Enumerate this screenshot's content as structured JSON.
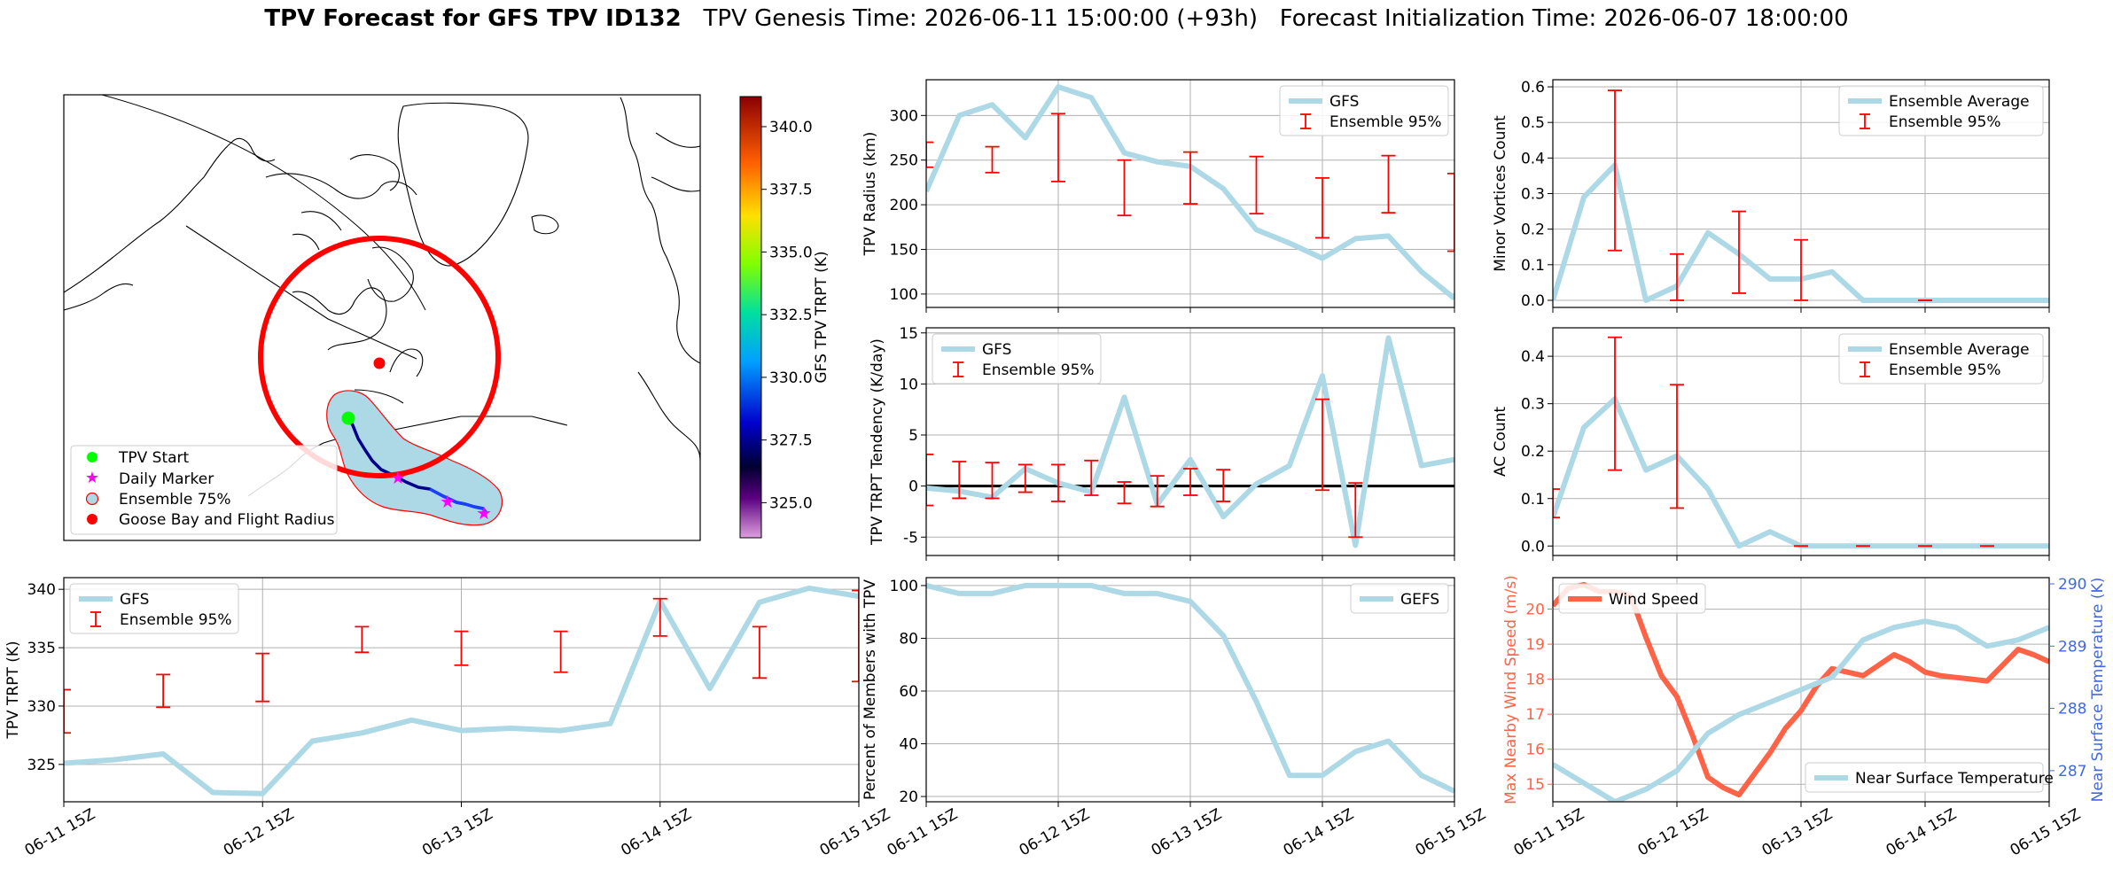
{
  "title": {
    "bold": "TPV Forecast for GFS TPV ID132",
    "genesis": "TPV Genesis Time: 2026-06-11 15:00:00 (+93h)",
    "init": "Forecast Initialization Time: 2026-06-07 18:00:00"
  },
  "x_ticks": [
    "06-11 15Z",
    "06-12 15Z",
    "06-13 15Z",
    "06-14 15Z",
    "06-15 15Z"
  ],
  "colors": {
    "gfs": "#add8e6",
    "error": "#ff0000",
    "wind": "#ff6347",
    "temp_axis": "#4169e1",
    "circle": "#ff0000",
    "start": "#00ff00",
    "daily": "#ff00ff",
    "goose": "#ff0000"
  },
  "map": {
    "colorbar_label": "GFS TPV TRPT (K)",
    "colorbar_ticks": [
      "325.0",
      "327.5",
      "330.0",
      "332.5",
      "335.0",
      "337.5",
      "340.0"
    ],
    "colorbar_range": [
      323.6,
      341.2
    ],
    "legend": [
      "TPV Start",
      "Daily Marker",
      "Ensemble 75%",
      "Goose Bay and Flight Radius"
    ]
  },
  "chart_data": [
    {
      "id": "radius",
      "type": "line",
      "ylabel": "TPV Radius (km)",
      "ylim": [
        85,
        340
      ],
      "yticks": [
        100,
        150,
        200,
        250,
        300
      ],
      "legend_location": "upper right",
      "grid": true,
      "series": [
        {
          "name": "GFS",
          "x": [
            0,
            0.25,
            0.5,
            0.75,
            1,
            1.25,
            1.5,
            1.75,
            2,
            2.25,
            2.5,
            2.75,
            3,
            3.25,
            3.5,
            3.75,
            4
          ],
          "y": [
            215,
            300,
            312,
            275,
            332,
            320,
            258,
            248,
            243,
            218,
            172,
            157,
            140,
            162,
            165,
            125,
            95
          ]
        }
      ],
      "errorbars": {
        "name": "Ensemble 95%",
        "x": [
          0,
          0.5,
          1,
          1.5,
          2,
          2.5,
          3,
          3.5,
          4
        ],
        "low": [
          242,
          236,
          226,
          188,
          201,
          190,
          163,
          191,
          148
        ],
        "high": [
          270,
          265,
          302,
          250,
          259,
          254,
          230,
          255,
          235
        ]
      }
    },
    {
      "id": "minor",
      "type": "line",
      "ylabel": "Minor Vortices Count",
      "ylim": [
        -0.02,
        0.62
      ],
      "yticks": [
        0.0,
        0.1,
        0.2,
        0.3,
        0.4,
        0.5,
        0.6
      ],
      "legend_location": "upper right",
      "grid": true,
      "series": [
        {
          "name": "Ensemble Average",
          "x": [
            0,
            0.25,
            0.5,
            0.75,
            1,
            1.25,
            1.5,
            1.75,
            2,
            2.25,
            2.5,
            2.75,
            3,
            3.25,
            3.5,
            3.75,
            4
          ],
          "y": [
            0,
            0.29,
            0.38,
            0,
            0.04,
            0.19,
            0.13,
            0.06,
            0.06,
            0.08,
            0,
            0,
            0,
            0,
            0,
            0,
            0
          ]
        }
      ],
      "errorbars": {
        "name": "Ensemble 95%",
        "x": [
          0.5,
          1,
          1.5,
          2,
          3
        ],
        "low": [
          0.14,
          0,
          0.02,
          0,
          0
        ],
        "high": [
          0.59,
          0.13,
          0.25,
          0.17,
          0
        ]
      }
    },
    {
      "id": "tendency",
      "type": "line",
      "ylabel": "TPV TRPT Tendency (K/day)",
      "ylim": [
        -6.8,
        15.5
      ],
      "yticks": [
        -5,
        0,
        5,
        10,
        15
      ],
      "legend_location": "upper left",
      "grid": true,
      "zero_line": true,
      "series": [
        {
          "name": "GFS",
          "x": [
            0,
            0.25,
            0.5,
            0.75,
            1,
            1.25,
            1.5,
            1.75,
            2,
            2.25,
            2.5,
            2.75,
            3,
            3.25,
            3.5,
            3.75,
            4
          ],
          "y": [
            -0.2,
            -0.5,
            -1.1,
            1.7,
            0.3,
            -0.6,
            8.7,
            -1.8,
            2.6,
            -3.0,
            0.2,
            2.0,
            10.8,
            -5.8,
            14.5,
            2.0,
            2.6
          ]
        }
      ],
      "errorbars": {
        "name": "Ensemble 95%",
        "x": [
          0,
          0.25,
          0.5,
          0.75,
          1,
          1.25,
          1.5,
          1.75,
          2,
          2.25,
          3,
          3.25
        ],
        "low": [
          -1.9,
          -1.2,
          -1.2,
          -0.6,
          -1.5,
          -0.9,
          -1.7,
          -2.0,
          -0.9,
          -1.5,
          -0.4,
          -5.0
        ],
        "high": [
          3.1,
          2.4,
          2.3,
          2.1,
          2.1,
          2.5,
          0.4,
          1.0,
          1.7,
          1.6,
          8.5,
          0.3
        ]
      }
    },
    {
      "id": "ac",
      "type": "line",
      "ylabel": "AC Count",
      "ylim": [
        -0.02,
        0.46
      ],
      "yticks": [
        0.0,
        0.1,
        0.2,
        0.3,
        0.4
      ],
      "legend_location": "upper right",
      "grid": true,
      "series": [
        {
          "name": "Ensemble Average",
          "x": [
            0,
            0.25,
            0.5,
            0.75,
            1,
            1.25,
            1.5,
            1.75,
            2,
            2.25,
            2.5,
            2.75,
            3,
            3.25,
            3.5,
            3.75,
            4
          ],
          "y": [
            0.06,
            0.25,
            0.31,
            0.16,
            0.19,
            0.12,
            0,
            0.03,
            0,
            0,
            0,
            0,
            0,
            0,
            0,
            0,
            0
          ]
        }
      ],
      "errorbars": {
        "name": "Ensemble 95%",
        "x": [
          0,
          0.5,
          1,
          2,
          2.5,
          3,
          3.5
        ],
        "low": [
          0.06,
          0.16,
          0.08,
          0,
          0,
          0,
          0
        ],
        "high": [
          0.12,
          0.44,
          0.34,
          0,
          0,
          0,
          0
        ]
      }
    },
    {
      "id": "trpt",
      "type": "line",
      "ylabel": "TPV TRPT (K)",
      "ylim": [
        321.8,
        341
      ],
      "yticks": [
        325,
        330,
        335,
        340
      ],
      "legend_location": "upper left",
      "grid": true,
      "series": [
        {
          "name": "GFS",
          "x": [
            0,
            0.25,
            0.5,
            0.75,
            1,
            1.25,
            1.5,
            1.75,
            2,
            2.25,
            2.5,
            2.75,
            3,
            3.25,
            3.5,
            3.75,
            4
          ],
          "y": [
            325.1,
            325.4,
            325.9,
            322.6,
            322.5,
            327.0,
            327.7,
            328.8,
            327.9,
            328.1,
            327.9,
            328.5,
            339.0,
            331.5,
            338.9,
            340.1,
            339.4
          ]
        }
      ],
      "errorbars": {
        "name": "Ensemble 95%",
        "x": [
          0,
          0.5,
          1,
          1.5,
          2,
          2.5,
          3,
          3.5,
          4
        ],
        "low": [
          327.7,
          329.9,
          330.4,
          334.6,
          333.5,
          332.9,
          336.0,
          332.4,
          332.1
        ],
        "high": [
          331.4,
          332.7,
          334.5,
          336.8,
          336.4,
          336.4,
          339.2,
          336.8,
          339.9
        ]
      }
    },
    {
      "id": "members",
      "type": "line",
      "ylabel": "Percent of Members with TPV",
      "ylim": [
        18,
        103
      ],
      "yticks": [
        20,
        40,
        60,
        80,
        100
      ],
      "legend_location": "upper right",
      "grid": true,
      "series": [
        {
          "name": "GEFS",
          "x": [
            0,
            0.25,
            0.5,
            0.75,
            1,
            1.25,
            1.5,
            1.75,
            2,
            2.25,
            2.5,
            2.75,
            3,
            3.25,
            3.5,
            3.75,
            4
          ],
          "y": [
            100,
            97,
            97,
            100,
            100,
            100,
            97,
            97,
            94,
            81,
            56,
            28,
            28,
            37,
            41,
            28,
            22
          ]
        }
      ]
    },
    {
      "id": "wind_temp",
      "type": "line",
      "ylabel": "Max Nearby Wind Speed (m/s)",
      "ylim": [
        14.5,
        20.9
      ],
      "yticks": [
        15,
        16,
        17,
        18,
        19,
        20
      ],
      "y2label": "Near Surface Temperature (K)",
      "y2lim": [
        286.5,
        290.1
      ],
      "y2ticks": [
        287,
        288,
        289,
        290
      ],
      "grid": true,
      "series": [
        {
          "name": "Wind Speed",
          "axis": "left",
          "x": [
            0,
            0.125,
            0.25,
            0.375,
            0.5,
            0.625,
            0.75,
            0.875,
            1,
            1.125,
            1.25,
            1.375,
            1.5,
            1.625,
            1.75,
            1.875,
            2,
            2.125,
            2.25,
            2.375,
            2.5,
            2.625,
            2.75,
            2.875,
            3,
            3.125,
            3.25,
            3.375,
            3.5,
            3.625,
            3.75,
            3.875,
            4
          ],
          "y": [
            20.1,
            20.6,
            20.7,
            20.5,
            20.5,
            20.4,
            19.2,
            18.1,
            17.5,
            16.4,
            15.2,
            14.9,
            14.7,
            15.3,
            15.9,
            16.6,
            17.1,
            17.8,
            18.3,
            18.2,
            18.1,
            18.4,
            18.7,
            18.5,
            18.2,
            18.1,
            18.05,
            18.0,
            17.95,
            18.4,
            18.85,
            18.7,
            18.5
          ]
        },
        {
          "name": "Near Surface Temperature",
          "axis": "right",
          "x": [
            0,
            0.25,
            0.5,
            0.75,
            1,
            1.25,
            1.5,
            1.75,
            2,
            2.25,
            2.5,
            2.75,
            3,
            3.25,
            3.5,
            3.75,
            4
          ],
          "y": [
            287.1,
            286.8,
            286.5,
            286.7,
            287.0,
            287.6,
            287.9,
            288.1,
            288.3,
            288.5,
            289.1,
            289.3,
            289.4,
            289.3,
            289.0,
            289.1,
            289.3
          ]
        }
      ]
    }
  ]
}
